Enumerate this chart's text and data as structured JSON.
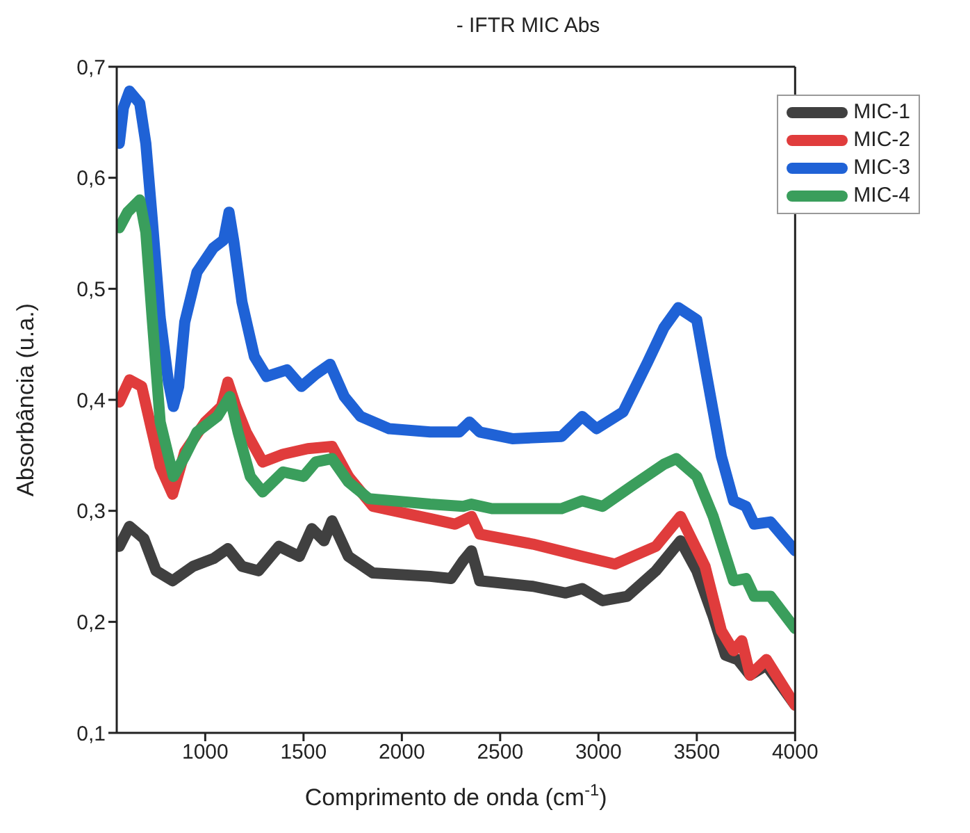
{
  "chart_data": {
    "type": "line",
    "title": "- IFTR MIC Abs",
    "xlabel": "Comprimento de onda (cm$^{-1}$)",
    "ylabel": "Absorbância (u.a.)",
    "xlim": [
      550,
      4000
    ],
    "xticks": [
      1000,
      1500,
      2000,
      2500,
      3000,
      3500,
      4000
    ],
    "ylim": [
      0.1,
      0.7
    ],
    "yticks": [
      {
        "value": 0.1,
        "label": "0,1"
      },
      {
        "value": 0.2,
        "label": "0,2"
      },
      {
        "value": 0.3,
        "label": "0,3"
      },
      {
        "value": 0.4,
        "label": "0,4"
      },
      {
        "value": 0.5,
        "label": "0,5"
      },
      {
        "value": 0.6,
        "label": "0,6"
      },
      {
        "value": 0.7,
        "label": "0,7"
      }
    ],
    "legend": "top right",
    "marker": "none",
    "line_style": "solid",
    "series": [
      {
        "name": "MIC-1",
        "color": "#404040",
        "x": [
          563,
          615,
          688,
          750,
          834,
          938,
          1042,
          1115,
          1187,
          1271,
          1375,
          1479,
          1542,
          1604,
          1645,
          1728,
          1853,
          2144,
          2250,
          2312,
          2354,
          2396,
          2667,
          2833,
          2917,
          3021,
          3146,
          3292,
          3417,
          3500,
          3583,
          3646,
          3708,
          3771,
          3854,
          4000
        ],
        "values": [
          0.268,
          0.286,
          0.275,
          0.246,
          0.237,
          0.25,
          0.257,
          0.266,
          0.25,
          0.246,
          0.268,
          0.259,
          0.284,
          0.273,
          0.291,
          0.259,
          0.244,
          0.241,
          0.239,
          0.255,
          0.264,
          0.237,
          0.232,
          0.226,
          0.23,
          0.219,
          0.223,
          0.246,
          0.273,
          0.246,
          0.205,
          0.17,
          0.166,
          0.152,
          0.161,
          0.125
        ]
      },
      {
        "name": "MIC-2",
        "color": "#e03c3c",
        "x": [
          563,
          615,
          677,
          730,
          771,
          834,
          896,
          1000,
          1083,
          1115,
          1156,
          1208,
          1292,
          1396,
          1521,
          1645,
          1728,
          1853,
          2144,
          2271,
          2354,
          2396,
          2667,
          2917,
          3083,
          3292,
          3417,
          3542,
          3625,
          3687,
          3729,
          3771,
          3854,
          4000
        ],
        "values": [
          0.398,
          0.418,
          0.412,
          0.371,
          0.34,
          0.315,
          0.353,
          0.38,
          0.394,
          0.416,
          0.394,
          0.371,
          0.344,
          0.351,
          0.356,
          0.358,
          0.331,
          0.304,
          0.293,
          0.288,
          0.295,
          0.279,
          0.27,
          0.259,
          0.252,
          0.268,
          0.295,
          0.25,
          0.192,
          0.174,
          0.183,
          0.152,
          0.166,
          0.125
        ]
      },
      {
        "name": "MIC-3",
        "color": "#1f62d6",
        "x": [
          563,
          584,
          615,
          667,
          698,
          730,
          771,
          813,
          838,
          865,
          896,
          958,
          1042,
          1094,
          1121,
          1146,
          1187,
          1250,
          1312,
          1416,
          1489,
          1562,
          1635,
          1707,
          1790,
          1936,
          2144,
          2292,
          2344,
          2396,
          2562,
          2812,
          2917,
          2990,
          3125,
          3250,
          3333,
          3406,
          3500,
          3542,
          3625,
          3687,
          3750,
          3792,
          3875,
          4000
        ],
        "values": [
          0.631,
          0.663,
          0.678,
          0.667,
          0.631,
          0.564,
          0.474,
          0.416,
          0.394,
          0.412,
          0.47,
          0.515,
          0.537,
          0.544,
          0.569,
          0.542,
          0.488,
          0.439,
          0.421,
          0.427,
          0.412,
          0.423,
          0.432,
          0.403,
          0.385,
          0.374,
          0.371,
          0.371,
          0.38,
          0.371,
          0.365,
          0.367,
          0.385,
          0.374,
          0.389,
          0.434,
          0.465,
          0.483,
          0.472,
          0.43,
          0.349,
          0.309,
          0.304,
          0.288,
          0.29,
          0.264
        ]
      },
      {
        "name": "MIC-4",
        "color": "#3a9e5c",
        "x": [
          563,
          605,
          667,
          698,
          730,
          771,
          838,
          896,
          958,
          1062,
          1125,
          1167,
          1229,
          1292,
          1396,
          1500,
          1562,
          1645,
          1728,
          1832,
          2144,
          2312,
          2354,
          2458,
          2812,
          2917,
          3021,
          3167,
          3333,
          3396,
          3500,
          3583,
          3687,
          3750,
          3792,
          3875,
          4000
        ],
        "values": [
          0.555,
          0.569,
          0.58,
          0.551,
          0.474,
          0.38,
          0.331,
          0.349,
          0.371,
          0.385,
          0.403,
          0.371,
          0.331,
          0.317,
          0.335,
          0.331,
          0.344,
          0.347,
          0.326,
          0.311,
          0.306,
          0.304,
          0.306,
          0.302,
          0.302,
          0.309,
          0.304,
          0.322,
          0.342,
          0.347,
          0.331,
          0.295,
          0.237,
          0.239,
          0.223,
          0.223,
          0.194
        ]
      }
    ]
  }
}
